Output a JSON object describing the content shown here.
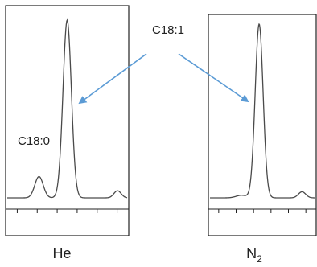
{
  "chart_data": [
    {
      "type": "line",
      "title": "",
      "xlabel": "He",
      "ylabel": "",
      "grid": false,
      "tick_count": 6,
      "peaks": [
        {
          "name": "C18:0",
          "x": 0.265,
          "height": 0.12
        },
        {
          "name": "C18:1",
          "x": 0.5,
          "height": 1.0
        },
        {
          "name": "",
          "x": 0.92,
          "height": 0.04
        }
      ],
      "annotations": [
        "C18:1",
        "C18:0"
      ]
    },
    {
      "type": "line",
      "title": "",
      "xlabel": "N",
      "xlabel_subscript": "2",
      "ylabel": "",
      "grid": false,
      "tick_count": 6,
      "peaks": [
        {
          "name": "",
          "x": 0.3,
          "height": 0.015
        },
        {
          "name": "C18:1",
          "x": 0.47,
          "height": 1.0
        },
        {
          "name": "",
          "x": 0.88,
          "height": 0.035
        }
      ],
      "annotations": []
    }
  ],
  "annotation": {
    "c18_1_label": "C18:1",
    "c18_0_label": "C18:0",
    "arrow_color": "#5b9bd5"
  },
  "labels": {
    "panel_left": "He",
    "panel_right_main": "N",
    "panel_right_sub": "2"
  }
}
